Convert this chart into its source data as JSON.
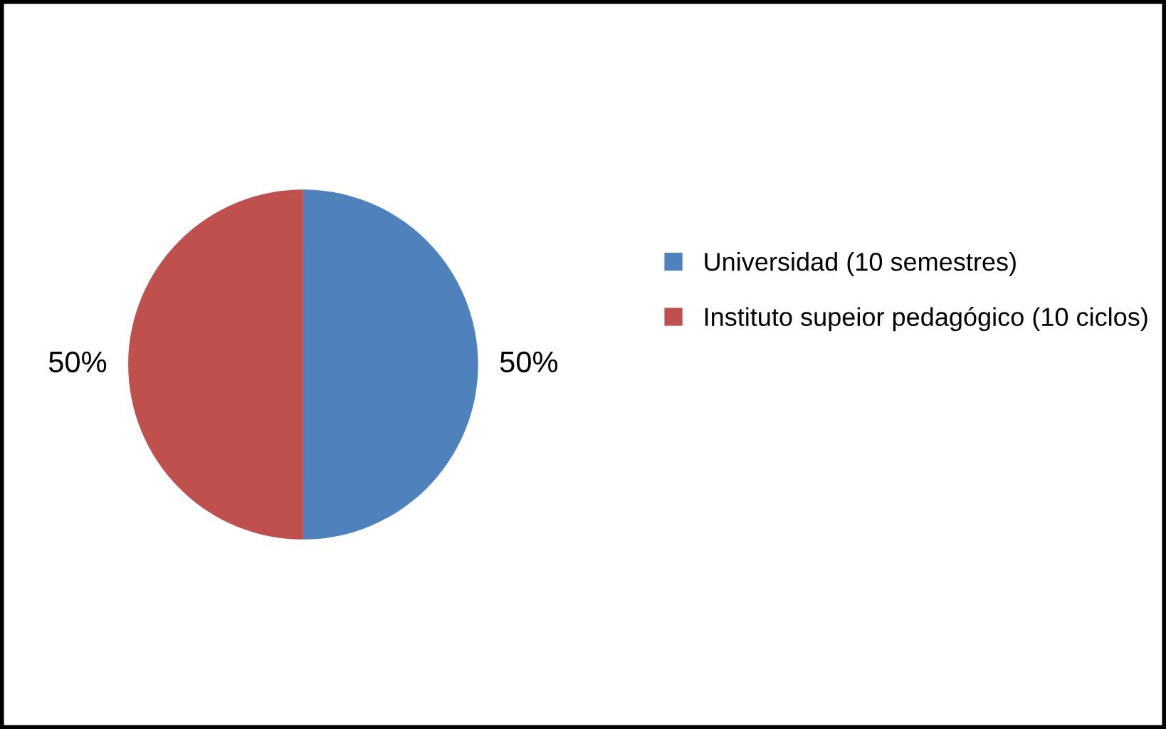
{
  "chart_data": {
    "type": "pie",
    "categories": [
      "Universidad (10 semestres)",
      "Instituto supeior pedagógico (10 ciclos)"
    ],
    "values": [
      50,
      50
    ],
    "colors": [
      "#4f81bd",
      "#c0504d"
    ],
    "value_labels": [
      "50%",
      "50%"
    ],
    "legend": "right"
  }
}
